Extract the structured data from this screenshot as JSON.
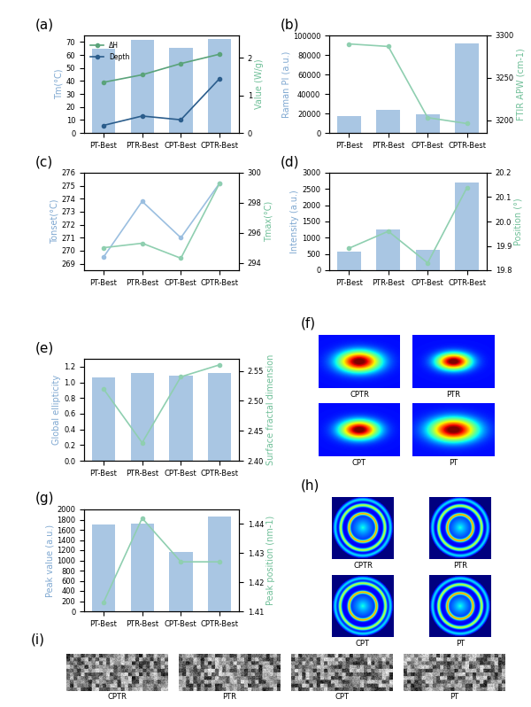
{
  "chart_data": [
    {
      "panel": "(a)",
      "type": "bar",
      "categories": [
        "PT-Best",
        "PTR-Best",
        "CPT-Best",
        "CPTR-Best"
      ],
      "ylabel": "Tm(°C)",
      "ylim": [
        0,
        75
      ],
      "yticks": [
        0,
        10,
        20,
        30,
        40,
        50,
        60,
        70
      ],
      "y2label": "Value (W/g)",
      "y2lim": [
        0,
        2.6
      ],
      "y2ticks": [
        0,
        1,
        2
      ],
      "legend": "upper left",
      "series": [
        {
          "type": "bar",
          "color": "#a9c6e3",
          "values": [
            65,
            71.5,
            65.5,
            72.5
          ]
        },
        {
          "type": "line",
          "name": "ΔH",
          "axis": "y2",
          "color": "#5aa37a",
          "marker": "o",
          "values": [
            1.35,
            1.55,
            1.85,
            2.1
          ]
        },
        {
          "type": "line",
          "name": "Depth",
          "axis": "y2",
          "color": "#2b5d8c",
          "marker": "o",
          "values": [
            0.2,
            0.45,
            0.35,
            1.45
          ]
        }
      ]
    },
    {
      "panel": "(b)",
      "type": "bar",
      "categories": [
        "PT-Best",
        "PTR-Best",
        "CPT-Best",
        "CPTR-Best"
      ],
      "ylabel": "Raman PI (a.u.)",
      "ylim": [
        0,
        100000
      ],
      "yticks": [
        0,
        20000,
        40000,
        60000,
        80000,
        100000
      ],
      "y2label": "FTIR APW (cm-1)",
      "y2lim": [
        3185,
        3300
      ],
      "y2ticks": [
        3200,
        3250,
        3300
      ],
      "series": [
        {
          "type": "bar",
          "color": "#a9c6e3",
          "values": [
            17000,
            24000,
            19000,
            92000
          ]
        },
        {
          "type": "line",
          "axis": "y2",
          "color": "#8fcfb0",
          "marker": "o",
          "values": [
            3290,
            3287,
            3203,
            3196
          ]
        }
      ]
    },
    {
      "panel": "(c)",
      "type": "line",
      "categories": [
        "PT-Best",
        "PTR-Best",
        "CPT-Best",
        "CPTR-Best"
      ],
      "ylabel": "Tonset(°C)",
      "ylim": [
        268.5,
        276
      ],
      "yticks": [
        269,
        270,
        271,
        272,
        273,
        274,
        275,
        276
      ],
      "y2label": "Tmax(°C)",
      "y2lim": [
        293.5,
        300
      ],
      "y2ticks": [
        294,
        296,
        298,
        300
      ],
      "series": [
        {
          "type": "line",
          "color": "#9bbfe0",
          "marker": "o",
          "values": [
            269.5,
            273.8,
            271.0,
            275.2
          ]
        },
        {
          "type": "line",
          "axis": "y2",
          "color": "#8fcfb0",
          "marker": "o",
          "values": [
            295.0,
            295.3,
            294.3,
            299.3
          ]
        }
      ]
    },
    {
      "panel": "(d)",
      "type": "bar",
      "categories": [
        "PT-Best",
        "PTR-Best",
        "CPT-Best",
        "CPTR-Best"
      ],
      "ylabel": "Intensity (a.u.)",
      "ylim": [
        0,
        3000
      ],
      "yticks": [
        0,
        500,
        1000,
        1500,
        2000,
        2500,
        3000
      ],
      "y2label": "Position (°)",
      "y2lim": [
        19.8,
        20.2
      ],
      "y2ticks": [
        19.8,
        19.9,
        {
          "value": 20.0,
          "label": "20.0"
        },
        20.1,
        20.2
      ],
      "series": [
        {
          "type": "bar",
          "color": "#a9c6e3",
          "values": [
            570,
            1250,
            620,
            2700
          ]
        },
        {
          "type": "line",
          "axis": "y2",
          "color": "#8fcfb0",
          "marker": "o",
          "values": [
            19.89,
            19.96,
            19.83,
            20.14
          ]
        }
      ]
    },
    {
      "panel": "(e)",
      "type": "bar",
      "categories": [
        "PT-Best",
        "PTR-Best",
        "CPT-Best",
        "CPTR-Best"
      ],
      "ylabel": "Global ellipticity",
      "ylim": [
        0,
        1.3
      ],
      "yticks": [
        {
          "value": 0,
          "label": "0.0"
        },
        0.2,
        0.4,
        0.6,
        0.8,
        {
          "value": 1,
          "label": "1.0"
        },
        1.2
      ],
      "y2label": "Surface fractal dimension",
      "y2lim": [
        2.4,
        2.57
      ],
      "y2ticks": [
        {
          "value": 2.4,
          "label": "2.40"
        },
        2.45,
        {
          "value": 2.5,
          "label": "2.50"
        },
        2.55
      ],
      "series": [
        {
          "type": "bar",
          "color": "#a9c6e3",
          "values": [
            1.06,
            1.12,
            1.09,
            1.12
          ]
        },
        {
          "type": "line",
          "axis": "y2",
          "color": "#8fcfb0",
          "marker": "o",
          "values": [
            2.52,
            2.43,
            2.54,
            2.56
          ]
        }
      ]
    },
    {
      "panel": "(g)",
      "type": "bar",
      "categories": [
        "PT-Best",
        "PTR-Best",
        "CPT-Best",
        "CPTR-Best"
      ],
      "ylabel": "Peak value (a.u.)",
      "ylim": [
        0,
        2000
      ],
      "yticks": [
        0,
        200,
        400,
        600,
        800,
        1000,
        1200,
        1400,
        1600,
        1800,
        2000
      ],
      "y2label": "Peak position (nm-1)",
      "y2lim": [
        1.41,
        1.445
      ],
      "y2ticks": [
        1.41,
        1.42,
        1.43,
        1.44
      ],
      "series": [
        {
          "type": "bar",
          "color": "#a9c6e3",
          "values": [
            1710,
            1720,
            1170,
            1860
          ]
        },
        {
          "type": "line",
          "axis": "y2",
          "color": "#8fcfb0",
          "marker": "o",
          "values": [
            1.413,
            1.442,
            1.427,
            1.427
          ]
        }
      ]
    }
  ],
  "images": [
    {
      "panel": "(f)",
      "labels": [
        "CPTR",
        "PTR",
        "CPT",
        "PT"
      ]
    },
    {
      "panel": "(h)",
      "labels": [
        "CPTR",
        "PTR",
        "CPT",
        "PT"
      ]
    },
    {
      "panel": "(i)",
      "labels": [
        "CPTR",
        "PTR",
        "CPT",
        "PT"
      ]
    }
  ]
}
